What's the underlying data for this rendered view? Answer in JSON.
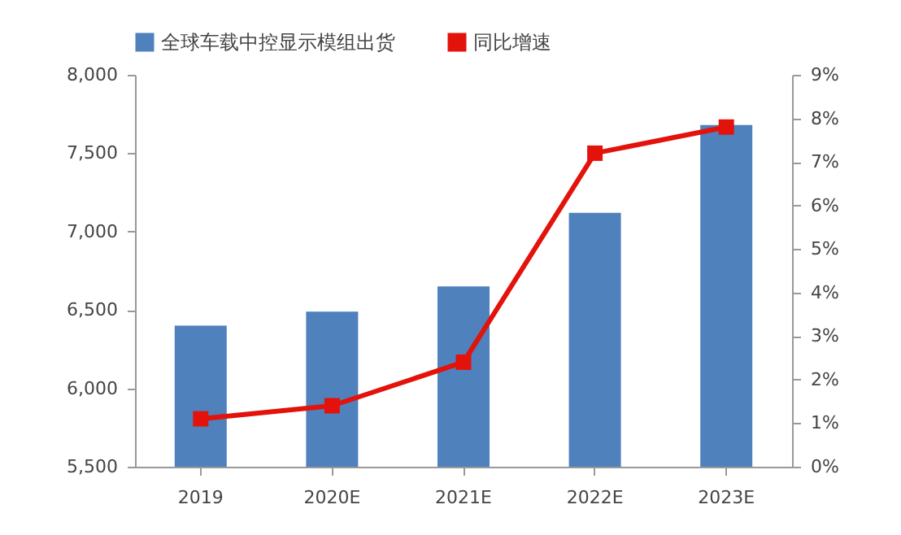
{
  "chart_data": {
    "type": "bar",
    "categories": [
      "2019",
      "2020E",
      "2021E",
      "2022E",
      "2023E"
    ],
    "series": [
      {
        "name": "全球车载中控显示模组出货",
        "color": "#4f81bd",
        "values": [
          6400,
          6490,
          6650,
          7120,
          7680
        ]
      },
      {
        "name": "同比增速",
        "type": "line",
        "axis": "y2",
        "color": "#e3120b",
        "values": [
          1.1,
          1.4,
          2.4,
          7.2,
          7.8
        ]
      }
    ],
    "ylim": [
      5500,
      8000
    ],
    "yticks": [
      {
        "value": 5500,
        "label": "5,500"
      },
      {
        "value": 6000,
        "label": "6,000"
      },
      {
        "value": 6500,
        "label": "6,500"
      },
      {
        "value": 7000,
        "label": "7,000"
      },
      {
        "value": 7500,
        "label": "7,500"
      },
      {
        "value": 8000,
        "label": "8,000"
      }
    ],
    "y2lim": [
      0,
      9
    ],
    "y2ticks": [
      {
        "value": 0,
        "label": "0%"
      },
      {
        "value": 1,
        "label": "1%"
      },
      {
        "value": 2,
        "label": "2%"
      },
      {
        "value": 3,
        "label": "3%"
      },
      {
        "value": 4,
        "label": "4%"
      },
      {
        "value": 5,
        "label": "5%"
      },
      {
        "value": 6,
        "label": "6%"
      },
      {
        "value": 7,
        "label": "7%"
      },
      {
        "value": 8,
        "label": "8%"
      },
      {
        "value": 9,
        "label": "9%"
      }
    ],
    "grid": false,
    "legend": "top",
    "marker": "square",
    "line_style": "solid"
  }
}
